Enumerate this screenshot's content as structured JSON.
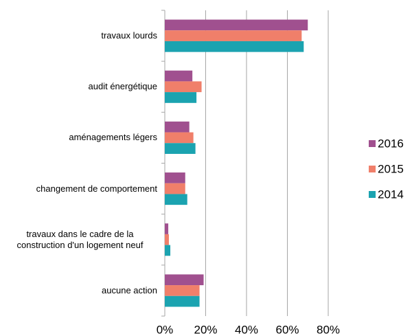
{
  "chart_data": {
    "type": "bar",
    "orientation": "horizontal",
    "categories": [
      "travaux lourds",
      "audit énergétique",
      "aménagements légers",
      "changement de comportement",
      "travaux dans le cadre de la construction d'un logement neuf",
      "aucune action"
    ],
    "series": [
      {
        "name": "2016",
        "color": "#a0508f",
        "values": [
          70,
          13.5,
          12,
          10,
          1.7,
          19
        ]
      },
      {
        "name": "2015",
        "color": "#f07f6a",
        "values": [
          67,
          18,
          14,
          10,
          2,
          17
        ]
      },
      {
        "name": "2014",
        "color": "#1ba3b0",
        "values": [
          68,
          15.5,
          15,
          11,
          2.7,
          17
        ]
      }
    ],
    "xlim": [
      0,
      80
    ],
    "xticks": [
      {
        "value": 0,
        "label": "0%"
      },
      {
        "value": 20,
        "label": "20%"
      },
      {
        "value": 40,
        "label": "40%"
      },
      {
        "value": 60,
        "label": "60%"
      },
      {
        "value": 80,
        "label": "80%"
      }
    ],
    "grid": true,
    "legend": "right"
  }
}
